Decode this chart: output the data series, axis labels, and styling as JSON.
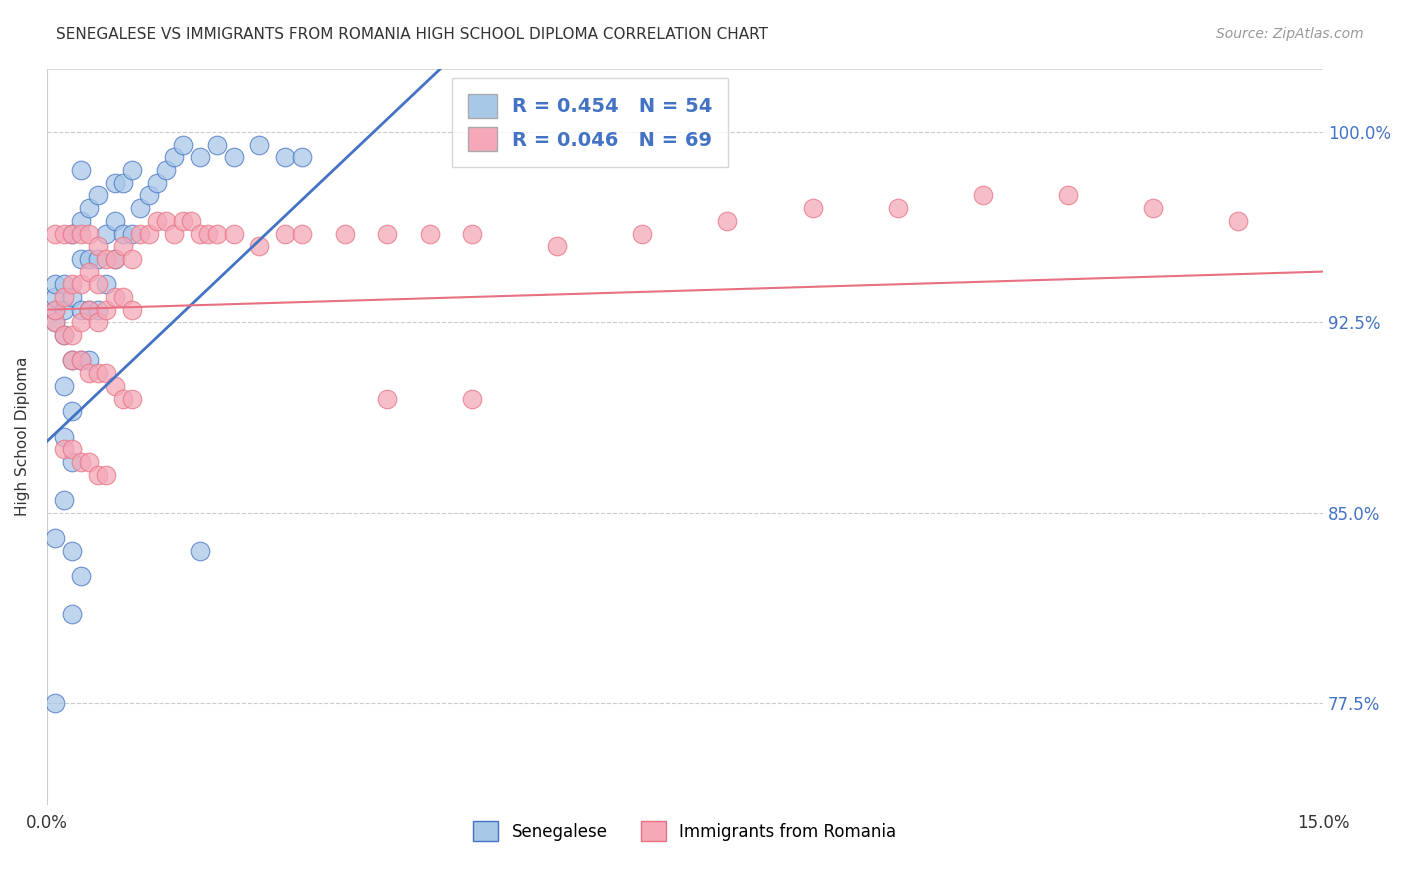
{
  "title": "SENEGALESE VS IMMIGRANTS FROM ROMANIA HIGH SCHOOL DIPLOMA CORRELATION CHART",
  "source": "Source: ZipAtlas.com",
  "ylabel": "High School Diploma",
  "ytick_labels": [
    "77.5%",
    "85.0%",
    "92.5%",
    "100.0%"
  ],
  "ytick_values": [
    0.775,
    0.85,
    0.925,
    1.0
  ],
  "xmin": 0.0,
  "xmax": 0.15,
  "ymin": 0.735,
  "ymax": 1.025,
  "legend_r1": "R = 0.454",
  "legend_n1": "N = 54",
  "legend_r2": "R = 0.046",
  "legend_n2": "N = 69",
  "color_blue": "#A8C8E8",
  "color_pink": "#F4A8B8",
  "color_blue_line": "#4472C4",
  "color_pink_line": "#E87080",
  "blue_x": [
    0.001,
    0.001,
    0.001,
    0.001,
    0.002,
    0.002,
    0.002,
    0.002,
    0.002,
    0.003,
    0.003,
    0.003,
    0.003,
    0.004,
    0.004,
    0.004,
    0.004,
    0.004,
    0.005,
    0.005,
    0.005,
    0.005,
    0.006,
    0.006,
    0.006,
    0.007,
    0.007,
    0.008,
    0.008,
    0.008,
    0.009,
    0.009,
    0.01,
    0.01,
    0.011,
    0.012,
    0.013,
    0.014,
    0.015,
    0.016,
    0.018,
    0.02,
    0.022,
    0.025,
    0.028,
    0.03,
    0.001,
    0.002,
    0.003,
    0.003,
    0.004,
    0.003,
    0.018,
    0.001
  ],
  "blue_y": [
    0.925,
    0.93,
    0.935,
    0.94,
    0.88,
    0.9,
    0.92,
    0.93,
    0.94,
    0.89,
    0.91,
    0.935,
    0.96,
    0.91,
    0.93,
    0.95,
    0.965,
    0.985,
    0.91,
    0.93,
    0.95,
    0.97,
    0.93,
    0.95,
    0.975,
    0.94,
    0.96,
    0.95,
    0.965,
    0.98,
    0.96,
    0.98,
    0.96,
    0.985,
    0.97,
    0.975,
    0.98,
    0.985,
    0.99,
    0.995,
    0.99,
    0.995,
    0.99,
    0.995,
    0.99,
    0.99,
    0.84,
    0.855,
    0.835,
    0.87,
    0.825,
    0.81,
    0.835,
    0.775
  ],
  "pink_x": [
    0.001,
    0.001,
    0.001,
    0.002,
    0.002,
    0.002,
    0.003,
    0.003,
    0.003,
    0.004,
    0.004,
    0.004,
    0.005,
    0.005,
    0.005,
    0.006,
    0.006,
    0.006,
    0.007,
    0.007,
    0.008,
    0.008,
    0.009,
    0.009,
    0.01,
    0.01,
    0.011,
    0.012,
    0.013,
    0.014,
    0.015,
    0.016,
    0.017,
    0.018,
    0.019,
    0.02,
    0.022,
    0.025,
    0.028,
    0.03,
    0.035,
    0.04,
    0.045,
    0.05,
    0.003,
    0.004,
    0.005,
    0.006,
    0.007,
    0.008,
    0.009,
    0.01,
    0.002,
    0.003,
    0.004,
    0.005,
    0.006,
    0.007,
    0.11,
    0.12,
    0.13,
    0.14,
    0.1,
    0.09,
    0.08,
    0.07,
    0.06,
    0.05,
    0.04
  ],
  "pink_y": [
    0.925,
    0.93,
    0.96,
    0.92,
    0.935,
    0.96,
    0.92,
    0.94,
    0.96,
    0.925,
    0.94,
    0.96,
    0.93,
    0.945,
    0.96,
    0.925,
    0.94,
    0.955,
    0.93,
    0.95,
    0.935,
    0.95,
    0.935,
    0.955,
    0.93,
    0.95,
    0.96,
    0.96,
    0.965,
    0.965,
    0.96,
    0.965,
    0.965,
    0.96,
    0.96,
    0.96,
    0.96,
    0.955,
    0.96,
    0.96,
    0.96,
    0.96,
    0.96,
    0.96,
    0.91,
    0.91,
    0.905,
    0.905,
    0.905,
    0.9,
    0.895,
    0.895,
    0.875,
    0.875,
    0.87,
    0.87,
    0.865,
    0.865,
    0.975,
    0.975,
    0.97,
    0.965,
    0.97,
    0.97,
    0.965,
    0.96,
    0.955,
    0.895,
    0.895
  ]
}
